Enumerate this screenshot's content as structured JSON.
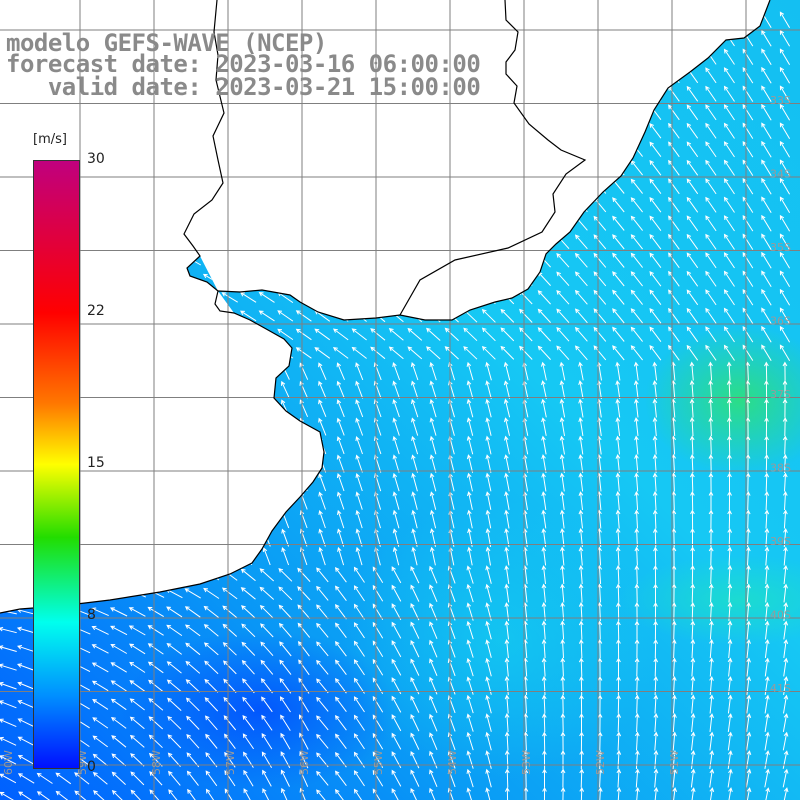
{
  "title": {
    "line1": "modelo GEFS-WAVE (NCEP)",
    "line2": "forecast date: 2023-03-16 06:00:00",
    "line3": "   valid date: 2023-03-21 15:00:00"
  },
  "colorbar": {
    "unit": "[m/s]",
    "ticks": [
      "30",
      "22",
      "15",
      "8",
      "0"
    ],
    "min": 0,
    "max": 30,
    "colors": [
      "#0010ff",
      "#0090ff",
      "#00ffee",
      "#22dd00",
      "#ffff00",
      "#ff7800",
      "#ff0000",
      "#c0007e"
    ]
  },
  "map": {
    "lat_labels": [
      "33S",
      "34S",
      "35S",
      "36S",
      "37S",
      "38S",
      "39S",
      "40S",
      "41S"
    ],
    "lon_labels": [
      "60W",
      "59W",
      "58W",
      "57W",
      "56W",
      "55W",
      "54W",
      "53W",
      "52W",
      "51W"
    ],
    "wind": {
      "speed_range_ms": [
        4,
        14
      ],
      "max_speed_area": "east, near 36S-37S",
      "direction_south": "northward",
      "direction_north": "northwestward",
      "direction_southwest": "westward"
    },
    "colors": {
      "land": "#ffffff",
      "coast": "#000000",
      "grid": "#7f7f7f",
      "vectors": "#ffffff"
    }
  }
}
